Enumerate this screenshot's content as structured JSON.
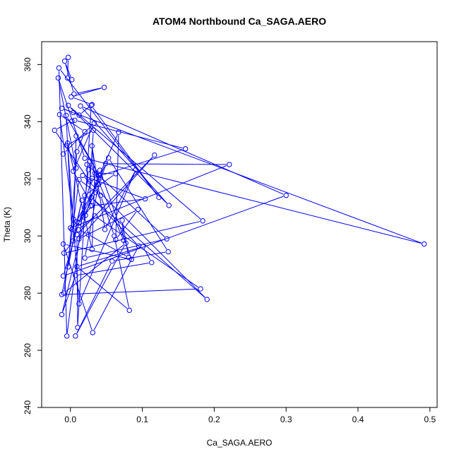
{
  "chart_data": {
    "type": "line",
    "title": "ATOM4 Northbound Ca_SAGA.AERO",
    "xlabel": "Ca_SAGA.AERO",
    "ylabel": "Theta (K)",
    "xlim": [
      -0.04,
      0.51
    ],
    "ylim": [
      240,
      368
    ],
    "xticks": [
      0.0,
      0.1,
      0.2,
      0.3,
      0.4,
      0.5
    ],
    "xtick_labels": [
      "0.0",
      "0.1",
      "0.2",
      "0.3",
      "0.4",
      "0.5"
    ],
    "yticks": [
      240,
      260,
      280,
      300,
      320,
      340,
      360
    ],
    "ytick_labels": [
      "240",
      "260",
      "280",
      "300",
      "320",
      "340",
      "360"
    ],
    "grid": false,
    "series": [
      {
        "color": "#0000ff",
        "marker": "open-circle",
        "x": [
          -0.003,
          -0.004,
          0.002,
          -0.008,
          0.005,
          0.047,
          0.001,
          0.03,
          0.012,
          -0.012,
          0.004,
          0.492,
          0.02,
          -0.017,
          0.008,
          -0.005,
          0.032,
          0.027,
          -0.022,
          0.002,
          0.006,
          0.16,
          0.03,
          -0.01,
          0.3,
          0.014,
          0.137,
          -0.003,
          0.184,
          -0.009,
          0.004,
          0.008,
          0.042,
          0.002,
          -0.006,
          0.04,
          0.067,
          0.063,
          0.094,
          0.012,
          0.117,
          0.009,
          0.01,
          0.029,
          0.123,
          -0.016,
          -0.005,
          0.02,
          0.063,
          0.034,
          0.03,
          -0.004,
          0.012,
          0.091,
          0.048,
          0.03,
          0.035,
          0.018,
          0.025,
          0.023,
          0.134,
          0.02,
          0.039,
          0.053,
          0.136,
          0.058,
          0.007,
          0.077,
          -0.009,
          0.012,
          0.042,
          0.061,
          0.082,
          0.009,
          0.101,
          0.113,
          0.007,
          -0.012,
          0.021,
          0.041,
          0.085,
          -0.01,
          0.031,
          0.095,
          0.029,
          0.19,
          0.017,
          0.104,
          0.028,
          0.027,
          0.074,
          0.072,
          0.081,
          0.025,
          0.011,
          0.034,
          0.181,
          -0.012,
          0.016,
          0.009,
          -0.003,
          0.009,
          0.02,
          -0.015,
          0.004,
          0.0,
          0.221,
          0.049,
          0.012,
          0.03,
          0.004,
          0.033,
          -0.01
        ],
        "y": [
          362.5,
          355.3,
          354.7,
          361.2,
          349.7,
          352.0,
          348.7,
          346.0,
          342.3,
          344.7,
          343.2,
          297.2,
          327.2,
          355.3,
          323.8,
          331.7,
          337.0,
          319.0,
          337.0,
          340.2,
          340.5,
          330.5,
          320.2,
          286.0,
          314.2,
          345.5,
          310.7,
          345.7,
          305.3,
          294.0,
          298.3,
          335.0,
          320.3,
          302.3,
          342.2,
          321.2,
          336.3,
          298.7,
          309.3,
          299.0,
          328.3,
          300.5,
          268.0,
          345.7,
          313.5,
          358.8,
          265.0,
          314.2,
          321.8,
          322.0,
          295.3,
          332.5,
          276.3,
          323.2,
          302.3,
          331.5,
          315.2,
          306.7,
          323.2,
          325.0,
          299.0,
          292.3,
          318.0,
          327.3,
          294.5,
          291.2,
          265.0,
          297.5,
          280.0,
          319.7,
          314.2,
          300.0,
          274.0,
          289.3,
          296.3,
          290.7,
          286.2,
          272.5,
          307.2,
          323.0,
          291.8,
          297.2,
          266.2,
          296.5,
          313.5,
          277.8,
          321.2,
          313.0,
          310.5,
          326.2,
          298.5,
          305.5,
          292.5,
          300.5,
          302.2,
          307.0,
          281.5,
          279.5,
          312.5,
          305.0,
          289.2,
          329.5,
          336.5,
          342.5,
          306.0,
          302.8,
          325.0,
          325.3,
          304.5,
          310.7,
          322.7,
          339.5,
          328.7
        ]
      }
    ]
  }
}
